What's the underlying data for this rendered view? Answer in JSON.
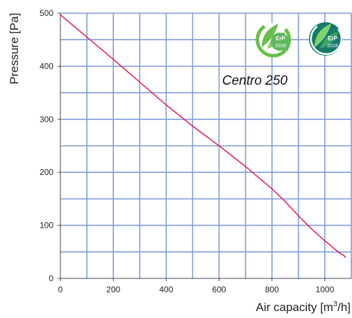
{
  "chart_data": {
    "type": "line",
    "title": "Centro 250",
    "xlabel_main": "Air capacity [m",
    "xlabel_sup": "3",
    "xlabel_end": "/h]",
    "ylabel": "Pressure [Pa]",
    "xlim": [
      0,
      1100
    ],
    "ylim": [
      0,
      500
    ],
    "x_grid": [
      0,
      100,
      200,
      300,
      400,
      500,
      600,
      700,
      800,
      900,
      1000,
      1100
    ],
    "y_grid": [
      0,
      50,
      100,
      150,
      200,
      250,
      300,
      350,
      400,
      450,
      500
    ],
    "x_ticks": [
      {
        "value": 0,
        "label": "0"
      },
      {
        "value": 200,
        "label": "200"
      },
      {
        "value": 400,
        "label": "400"
      },
      {
        "value": 600,
        "label": "600"
      },
      {
        "value": 800,
        "label": "800"
      },
      {
        "value": 1000,
        "label": "1000"
      }
    ],
    "y_ticks": [
      {
        "value": 0,
        "label": "0"
      },
      {
        "value": 100,
        "label": "100"
      },
      {
        "value": 200,
        "label": "200"
      },
      {
        "value": 300,
        "label": "300"
      },
      {
        "value": 400,
        "label": "400"
      },
      {
        "value": 500,
        "label": "500"
      }
    ],
    "grid": true,
    "series": [
      {
        "x": [
          0,
          100,
          200,
          300,
          400,
          500,
          600,
          700,
          800,
          850,
          900,
          950,
          1000,
          1050,
          1070,
          1078
        ],
        "y": [
          497,
          455,
          413,
          370,
          327,
          287,
          250,
          211,
          169,
          145,
          118,
          93,
          71,
          50,
          44,
          40
        ]
      }
    ],
    "colors": {
      "line": "#e0245e",
      "grid": "#7e9cd8",
      "axis": "#444444"
    }
  },
  "badges": [
    {
      "icon": "erp-leaf-icon",
      "line1": "ErP",
      "line2": "2016",
      "color": "#5cb85c"
    },
    {
      "icon": "erp-leaf-icon",
      "line1": "ErP",
      "line2": "2018",
      "color": "#1a7a6a"
    }
  ]
}
